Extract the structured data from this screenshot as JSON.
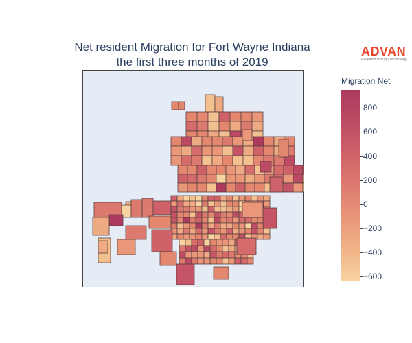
{
  "title": {
    "line1": "Net resident Migration for Fort Wayne Indiana",
    "line2": "the first three months of 2019"
  },
  "brand": {
    "name": "ADVAN",
    "tagline": "Research through Technology",
    "color": "#e8452c"
  },
  "colorbar": {
    "title": "Migration Net",
    "min": -640,
    "max": 950,
    "ticks": [
      {
        "value": 800,
        "label": "800"
      },
      {
        "value": 600,
        "label": "600"
      },
      {
        "value": 400,
        "label": "400"
      },
      {
        "value": 200,
        "label": "200"
      },
      {
        "value": 0,
        "label": "0"
      },
      {
        "value": -200,
        "label": "−200"
      },
      {
        "value": -400,
        "label": "−400"
      },
      {
        "value": -600,
        "label": "−600"
      }
    ],
    "colorscale": [
      "#f7d4a0",
      "#f0b487",
      "#e99679",
      "#dd7a6f",
      "#cf6269",
      "#bc4b63",
      "#ad3a5e"
    ]
  },
  "map": {
    "background": "#e5ecf6",
    "border_color": "#444444"
  }
}
